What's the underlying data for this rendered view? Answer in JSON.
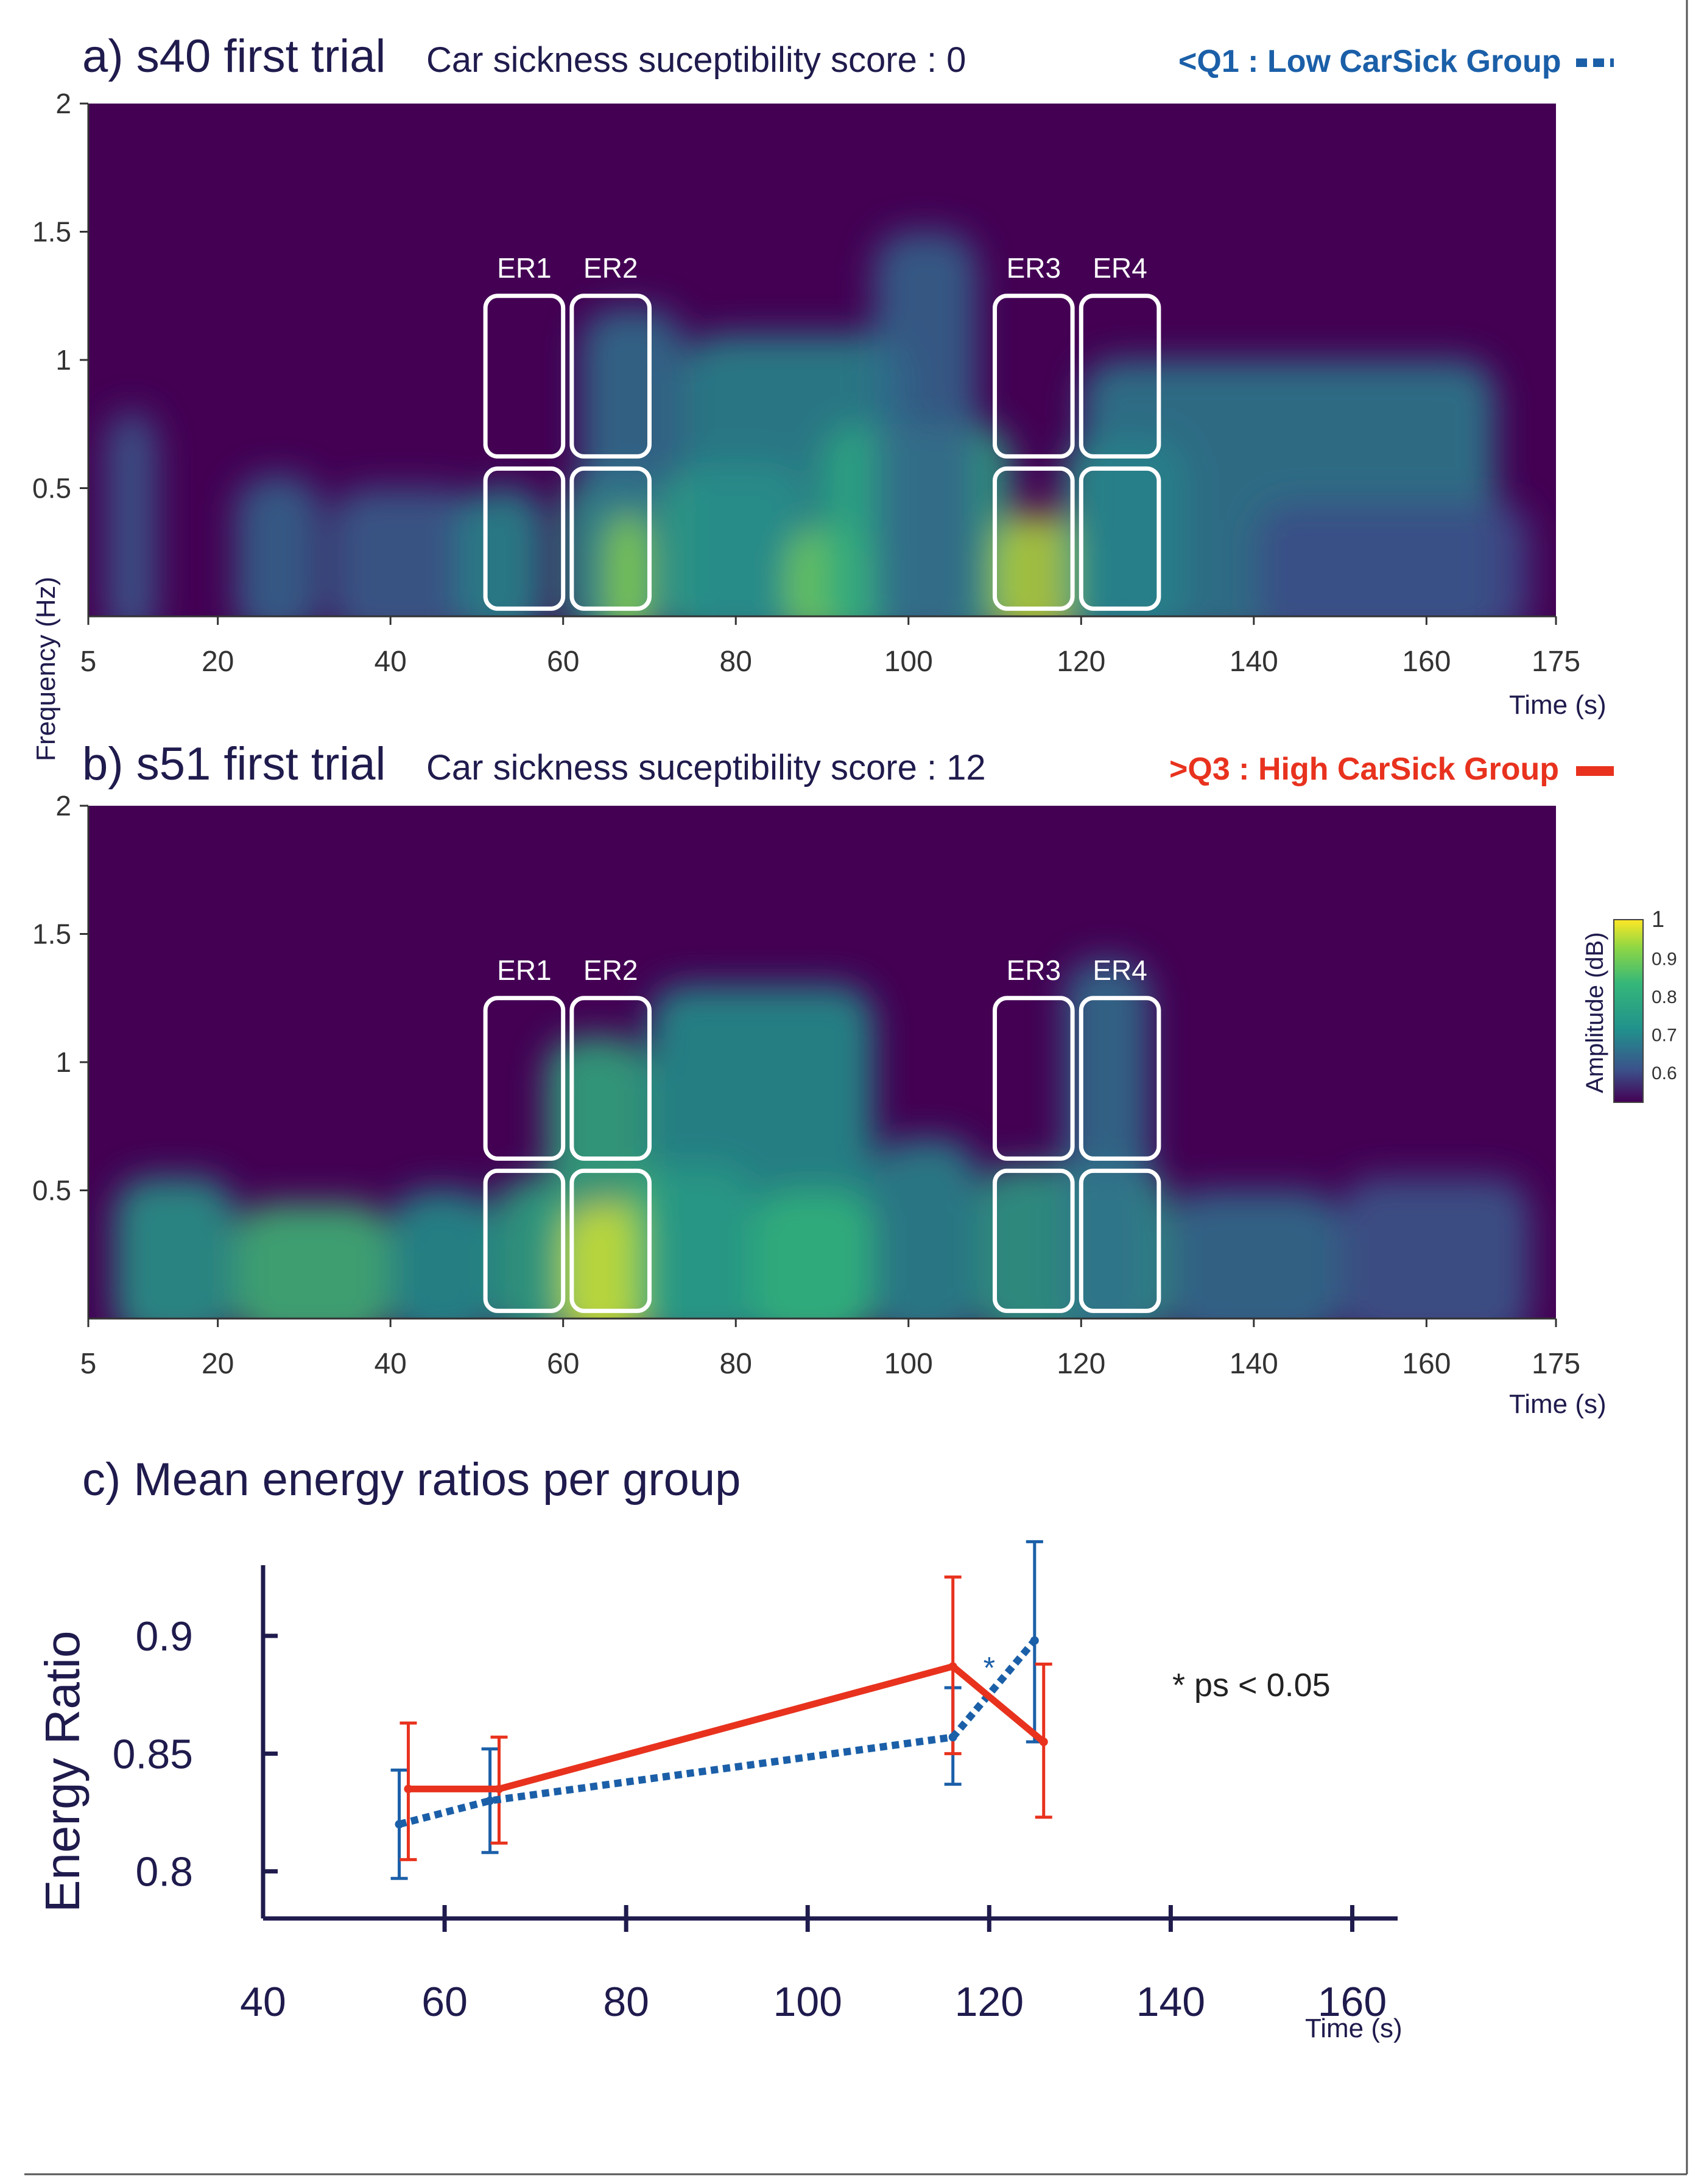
{
  "colors": {
    "navy": "#1f1b4d",
    "low_group": "#1b5fa8",
    "high_group": "#e8321e",
    "spec_bg": "#440154"
  },
  "chart_data": [
    {
      "id": "a",
      "type": "heatmap",
      "title_prefix": "a) s40 first trial",
      "title_score": "Car sickness suceptibility score : 0",
      "group_label": "<Q1 : Low CarSick Group",
      "group_key": "low",
      "ylabel": "Frequency (Hz)",
      "xlabel": "Time (s)",
      "xlim": [
        5,
        175
      ],
      "ylim": [
        0,
        2
      ],
      "x_ticks": [
        5,
        20,
        40,
        60,
        80,
        100,
        120,
        140,
        160,
        175
      ],
      "y_ticks": [
        0.5,
        1,
        1.5,
        2
      ],
      "y_tick_labels": [
        "0.5",
        "1",
        "1.5",
        "2"
      ],
      "blobs": [
        {
          "t0": 7,
          "t1": 13,
          "f": 0.8,
          "v": 0.62
        },
        {
          "t0": 22,
          "t1": 32,
          "f": 0.55,
          "v": 0.64
        },
        {
          "t0": 33,
          "t1": 50,
          "f": 0.5,
          "v": 0.63
        },
        {
          "t0": 48,
          "t1": 58,
          "f": 0.5,
          "v": 0.7
        },
        {
          "t0": 60,
          "t1": 72,
          "f": 0.55,
          "v": 0.78
        },
        {
          "t0": 62,
          "t1": 74,
          "f": 1.2,
          "v": 0.66
        },
        {
          "t0": 65,
          "t1": 70,
          "f": 0.4,
          "v": 0.92
        },
        {
          "t0": 72,
          "t1": 88,
          "f": 0.6,
          "v": 0.8
        },
        {
          "t0": 74,
          "t1": 100,
          "f": 1.1,
          "v": 0.7
        },
        {
          "t0": 86,
          "t1": 96,
          "f": 0.35,
          "v": 0.9
        },
        {
          "t0": 90,
          "t1": 112,
          "f": 0.75,
          "v": 0.78
        },
        {
          "t0": 96,
          "t1": 108,
          "f": 1.5,
          "v": 0.64
        },
        {
          "t0": 110,
          "t1": 120,
          "f": 0.4,
          "v": 0.95
        },
        {
          "t0": 118,
          "t1": 132,
          "f": 0.7,
          "v": 0.76
        },
        {
          "t0": 120,
          "t1": 168,
          "f": 1.0,
          "v": 0.68
        },
        {
          "t0": 140,
          "t1": 172,
          "f": 0.45,
          "v": 0.6
        }
      ],
      "boxes": [
        {
          "label": "ER1",
          "t0": 51,
          "t1": 60
        },
        {
          "label": "ER2",
          "t0": 61,
          "t1": 70
        },
        {
          "label": "ER3",
          "t0": 110,
          "t1": 119
        },
        {
          "label": "ER4",
          "t0": 120,
          "t1": 129
        }
      ]
    },
    {
      "id": "b",
      "type": "heatmap",
      "title_prefix": "b) s51 first trial",
      "title_score": "Car sickness suceptibility score : 12",
      "group_label": ">Q3 : High CarSick Group",
      "group_key": "high",
      "xlabel": "Time (s)",
      "xlim": [
        5,
        175
      ],
      "ylim": [
        0,
        2
      ],
      "x_ticks": [
        5,
        20,
        40,
        60,
        80,
        100,
        120,
        140,
        160,
        175
      ],
      "y_ticks": [
        0.5,
        1,
        1.5,
        2
      ],
      "y_tick_labels": [
        "0.5",
        "1",
        "1.5",
        "2"
      ],
      "blobs": [
        {
          "t0": 8,
          "t1": 22,
          "f": 0.55,
          "v": 0.74
        },
        {
          "t0": 22,
          "t1": 40,
          "f": 0.45,
          "v": 0.84
        },
        {
          "t0": 40,
          "t1": 52,
          "f": 0.5,
          "v": 0.72
        },
        {
          "t0": 52,
          "t1": 60,
          "f": 0.55,
          "v": 0.78
        },
        {
          "t0": 58,
          "t1": 70,
          "f": 1.1,
          "v": 0.8
        },
        {
          "t0": 60,
          "t1": 70,
          "f": 0.45,
          "v": 0.97
        },
        {
          "t0": 68,
          "t1": 82,
          "f": 0.6,
          "v": 0.86
        },
        {
          "t0": 70,
          "t1": 96,
          "f": 1.3,
          "v": 0.72
        },
        {
          "t0": 82,
          "t1": 96,
          "f": 0.5,
          "v": 0.82
        },
        {
          "t0": 96,
          "t1": 108,
          "f": 0.7,
          "v": 0.7
        },
        {
          "t0": 108,
          "t1": 130,
          "f": 0.6,
          "v": 0.76
        },
        {
          "t0": 118,
          "t1": 128,
          "f": 1.4,
          "v": 0.66
        },
        {
          "t0": 130,
          "t1": 150,
          "f": 0.5,
          "v": 0.66
        },
        {
          "t0": 150,
          "t1": 172,
          "f": 0.55,
          "v": 0.62
        }
      ],
      "boxes": [
        {
          "label": "ER1",
          "t0": 51,
          "t1": 60
        },
        {
          "label": "ER2",
          "t0": 61,
          "t1": 70
        },
        {
          "label": "ER3",
          "t0": 110,
          "t1": 119
        },
        {
          "label": "ER4",
          "t0": 120,
          "t1": 129
        }
      ]
    },
    {
      "id": "c",
      "type": "line",
      "title": "c) Mean energy ratios per group",
      "ylabel": "Energy Ratio",
      "xlabel": "Time (s)",
      "xlim": [
        40,
        165
      ],
      "ylim": [
        0.78,
        0.93
      ],
      "x_ticks": [
        40,
        60,
        80,
        100,
        120,
        140,
        160
      ],
      "y_ticks": [
        0.8,
        0.85,
        0.9
      ],
      "y_tick_labels": [
        "0.8",
        "0.85",
        "0.9"
      ],
      "significance_note": "* ps < 0.05",
      "significance_marker": "*",
      "significance_at": {
        "x": 120,
        "y": 0.882
      },
      "series": [
        {
          "name": "Low CarSick Group (Q1)",
          "color_key": "low",
          "style": "dashed",
          "x": [
            55,
            65,
            116,
            125
          ],
          "y": [
            0.82,
            0.83,
            0.857,
            0.898
          ],
          "err_low": [
            0.797,
            0.808,
            0.837,
            0.855
          ],
          "err_high": [
            0.843,
            0.852,
            0.878,
            0.94
          ]
        },
        {
          "name": "High CarSick Group (Q3)",
          "color_key": "high",
          "style": "solid",
          "x": [
            56,
            66,
            116,
            126
          ],
          "y": [
            0.835,
            0.835,
            0.887,
            0.855
          ],
          "err_low": [
            0.805,
            0.812,
            0.85,
            0.823
          ],
          "err_high": [
            0.863,
            0.857,
            0.925,
            0.888
          ]
        }
      ]
    }
  ],
  "colorbar": {
    "label": "Amplitude (dB)",
    "tick_labels": [
      "1",
      "0.9",
      "0.8",
      "0.7",
      "0.6"
    ],
    "tick_values": [
      1,
      0.9,
      0.8,
      0.7,
      0.6
    ],
    "vmin": 0.52,
    "vmax": 1
  }
}
